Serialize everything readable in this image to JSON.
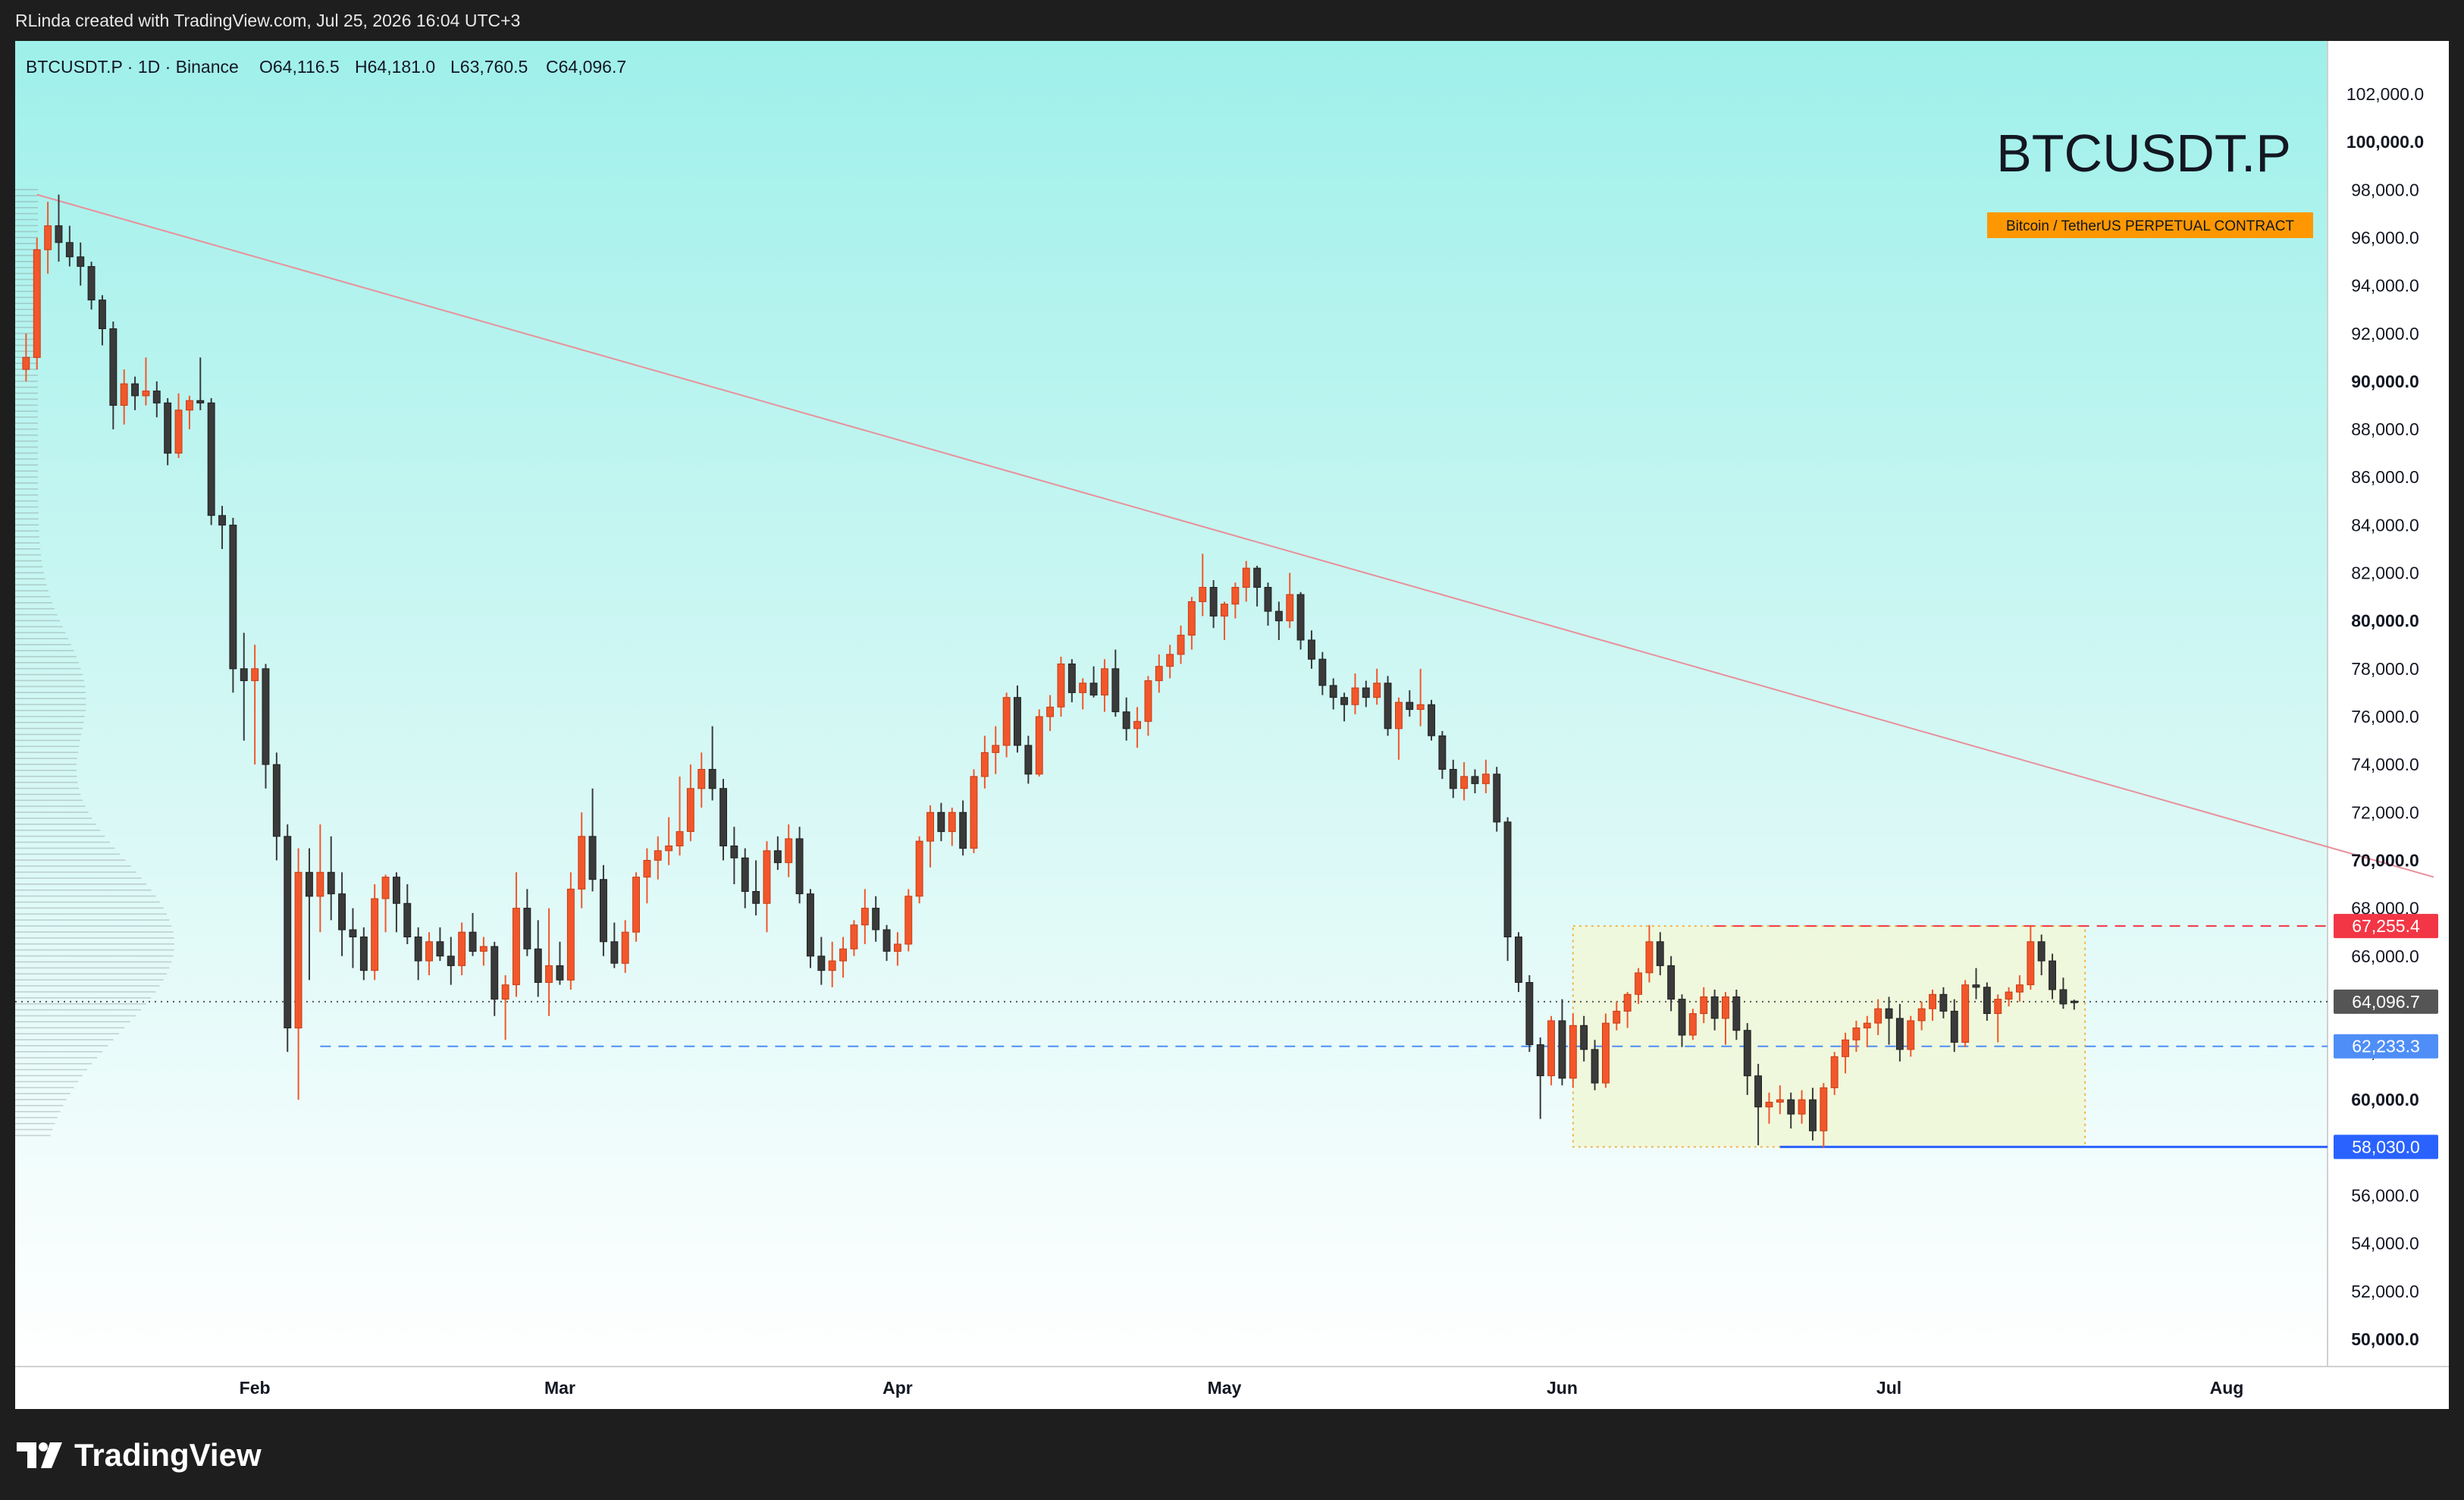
{
  "header": {
    "credit": "RLinda created with TradingView.com, Jul 25, 2026 16:04 UTC+3"
  },
  "legend": {
    "symbol_line": "BTCUSDT.P · 1D · Binance",
    "open": "O64,116.5",
    "high": "H64,181.0",
    "low": "L63,760.5",
    "close": "C64,096.7"
  },
  "watermark": {
    "symbol": "BTCUSDT.P",
    "description": "Bitcoin / TetherUS PERPETUAL CONTRACT"
  },
  "footer": {
    "brand": "TradingView"
  },
  "colors": {
    "bg_top": "#9ff0ea",
    "bg_bottom": "#ffffff",
    "bull": "#f2572b",
    "bear": "#3a3a3a",
    "trendline": "#e8909a",
    "range_box": "#f0f7d8",
    "range_border": "#f0b44a",
    "resistance": "#f23645",
    "support_mid": "#4f8ef7",
    "support_low": "#2962ff",
    "current": "#555555"
  },
  "chart_data": {
    "type": "candlestick",
    "ylim": [
      49000,
      103000
    ],
    "y_ticks": [
      102000,
      100000,
      98000,
      96000,
      94000,
      92000,
      90000,
      88000,
      86000,
      84000,
      82000,
      80000,
      78000,
      76000,
      74000,
      72000,
      70000,
      68000,
      66000,
      64000,
      62000,
      60000,
      58000,
      56000,
      54000,
      52000,
      50000
    ],
    "y_tick_labels": [
      "102,000.0",
      "100,000.0",
      "98,000.0",
      "96,000.0",
      "94,000.0",
      "92,000.0",
      "90,000.0",
      "88,000.0",
      "86,000.0",
      "84,000.0",
      "82,000.0",
      "80,000.0",
      "78,000.0",
      "76,000.0",
      "74,000.0",
      "72,000.0",
      "70,000.0",
      "68,000.0",
      "66,000.0",
      "64,000.0",
      "62,000.0",
      "60,000.0",
      "58,000.0",
      "56,000.0",
      "54,000.0",
      "52,000.0",
      "50,000.0"
    ],
    "y_tick_bold": [
      100000,
      90000,
      80000,
      70000,
      60000,
      50000
    ],
    "x_ticks": [
      {
        "date": "2026-02-01",
        "label": "Feb"
      },
      {
        "date": "2026-03-01",
        "label": "Mar"
      },
      {
        "date": "2026-04-01",
        "label": "Apr"
      },
      {
        "date": "2026-05-01",
        "label": "May"
      },
      {
        "date": "2026-06-01",
        "label": "Jun"
      },
      {
        "date": "2026-07-01",
        "label": "Jul"
      },
      {
        "date": "2026-08-01",
        "label": "Aug"
      }
    ],
    "x_range": [
      "2026-01-10",
      "2026-08-20"
    ],
    "candles_start": "2026-01-11",
    "candles": [
      [
        90500,
        92000,
        90000,
        91000
      ],
      [
        91000,
        96000,
        90500,
        95500
      ],
      [
        95500,
        97500,
        94500,
        96500
      ],
      [
        96500,
        97800,
        95000,
        95800
      ],
      [
        95800,
        96500,
        94800,
        95200
      ],
      [
        95200,
        95800,
        94000,
        94800
      ],
      [
        94800,
        95000,
        93000,
        93400
      ],
      [
        93400,
        93600,
        91500,
        92200
      ],
      [
        92200,
        92500,
        88000,
        89000
      ],
      [
        89000,
        90500,
        88200,
        89900
      ],
      [
        89900,
        90200,
        88800,
        89400
      ],
      [
        89400,
        91000,
        89000,
        89600
      ],
      [
        89600,
        90000,
        88500,
        89100
      ],
      [
        89100,
        89300,
        86500,
        87000
      ],
      [
        87000,
        89500,
        86800,
        88800
      ],
      [
        88800,
        89400,
        88000,
        89200
      ],
      [
        89200,
        91000,
        88800,
        89100
      ],
      [
        89100,
        89300,
        84000,
        84400
      ],
      [
        84400,
        84800,
        83000,
        84000
      ],
      [
        84000,
        84300,
        77000,
        78000
      ],
      [
        78000,
        79500,
        75000,
        77500
      ],
      [
        77500,
        79000,
        74000,
        78000
      ],
      [
        78000,
        78200,
        73000,
        74000
      ],
      [
        74000,
        74500,
        70000,
        71000
      ],
      [
        71000,
        71500,
        62000,
        63000
      ],
      [
        63000,
        70500,
        60000,
        69500
      ],
      [
        69500,
        70500,
        65000,
        68500
      ],
      [
        68500,
        71500,
        67000,
        69500
      ],
      [
        69500,
        71000,
        67500,
        68600
      ],
      [
        68600,
        69500,
        66000,
        67100
      ],
      [
        67100,
        68000,
        65500,
        66800
      ],
      [
        66800,
        67200,
        65000,
        65400
      ],
      [
        65400,
        69000,
        65000,
        68400
      ],
      [
        68400,
        69400,
        67000,
        69300
      ],
      [
        69300,
        69500,
        67000,
        68200
      ],
      [
        68200,
        69000,
        66500,
        66800
      ],
      [
        66800,
        67200,
        65000,
        65800
      ],
      [
        65800,
        67000,
        65200,
        66600
      ],
      [
        66600,
        67200,
        65800,
        66000
      ],
      [
        66000,
        66800,
        64800,
        65600
      ],
      [
        65600,
        67400,
        65200,
        67000
      ],
      [
        67000,
        67800,
        66000,
        66200
      ],
      [
        66200,
        66800,
        65600,
        66400
      ],
      [
        66400,
        66600,
        63500,
        64200
      ],
      [
        64200,
        65200,
        62500,
        64800
      ],
      [
        64800,
        69500,
        64300,
        68000
      ],
      [
        68000,
        68800,
        66000,
        66300
      ],
      [
        66300,
        67500,
        64300,
        64900
      ],
      [
        64900,
        68000,
        63500,
        65600
      ],
      [
        65600,
        66600,
        64800,
        65000
      ],
      [
        65000,
        69500,
        64600,
        68800
      ],
      [
        68800,
        72000,
        68000,
        71000
      ],
      [
        71000,
        73000,
        68700,
        69200
      ],
      [
        69200,
        69800,
        66000,
        66600
      ],
      [
        66600,
        67400,
        65500,
        65700
      ],
      [
        65700,
        67500,
        65300,
        67000
      ],
      [
        67000,
        69500,
        66600,
        69300
      ],
      [
        69300,
        70500,
        68200,
        70000
      ],
      [
        70000,
        71000,
        69200,
        70400
      ],
      [
        70400,
        71800,
        69800,
        70600
      ],
      [
        70600,
        73500,
        70200,
        71200
      ],
      [
        71200,
        74000,
        70800,
        73000
      ],
      [
        73000,
        74500,
        72200,
        73800
      ],
      [
        73800,
        75600,
        72500,
        73000
      ],
      [
        73000,
        73400,
        70000,
        70600
      ],
      [
        70600,
        71400,
        69000,
        70100
      ],
      [
        70100,
        70500,
        68000,
        68700
      ],
      [
        68700,
        70000,
        67700,
        68200
      ],
      [
        68200,
        70800,
        67000,
        70400
      ],
      [
        70400,
        71000,
        69600,
        69900
      ],
      [
        69900,
        71500,
        69300,
        70900
      ],
      [
        70900,
        71400,
        68200,
        68600
      ],
      [
        68600,
        68800,
        65500,
        66000
      ],
      [
        66000,
        66800,
        64800,
        65400
      ],
      [
        65400,
        66600,
        64700,
        65800
      ],
      [
        65800,
        66800,
        65100,
        66300
      ],
      [
        66300,
        67500,
        66000,
        67300
      ],
      [
        67300,
        68800,
        66500,
        68000
      ],
      [
        68000,
        68500,
        66600,
        67100
      ],
      [
        67100,
        67300,
        65800,
        66200
      ],
      [
        66200,
        67000,
        65600,
        66500
      ],
      [
        66500,
        68800,
        66200,
        68500
      ],
      [
        68500,
        71000,
        68200,
        70800
      ],
      [
        70800,
        72300,
        69700,
        72000
      ],
      [
        72000,
        72400,
        70800,
        71200
      ],
      [
        71200,
        72200,
        70600,
        72000
      ],
      [
        72000,
        72500,
        70200,
        70500
      ],
      [
        70500,
        73800,
        70300,
        73500
      ],
      [
        73500,
        75200,
        73000,
        74500
      ],
      [
        74500,
        75600,
        73600,
        74800
      ],
      [
        74800,
        77000,
        74300,
        76800
      ],
      [
        76800,
        77300,
        74500,
        74800
      ],
      [
        74800,
        75200,
        73200,
        73600
      ],
      [
        73600,
        76300,
        73500,
        76000
      ],
      [
        76000,
        76900,
        75400,
        76400
      ],
      [
        76400,
        78500,
        76000,
        78200
      ],
      [
        78200,
        78400,
        76600,
        77000
      ],
      [
        77000,
        77600,
        76300,
        77400
      ],
      [
        77400,
        78100,
        76800,
        76900
      ],
      [
        76900,
        78400,
        76200,
        78000
      ],
      [
        78000,
        78800,
        76000,
        76200
      ],
      [
        76200,
        76800,
        75000,
        75500
      ],
      [
        75500,
        76400,
        74700,
        75800
      ],
      [
        75800,
        77700,
        75200,
        77500
      ],
      [
        77500,
        78600,
        77000,
        78100
      ],
      [
        78100,
        79000,
        77600,
        78600
      ],
      [
        78600,
        79800,
        78200,
        79400
      ],
      [
        79400,
        81000,
        78800,
        80800
      ],
      [
        80800,
        82800,
        80200,
        81400
      ],
      [
        81400,
        81700,
        79700,
        80200
      ],
      [
        80200,
        80800,
        79200,
        80700
      ],
      [
        80700,
        81600,
        80100,
        81400
      ],
      [
        81400,
        82500,
        80800,
        82200
      ],
      [
        82200,
        82300,
        80600,
        81400
      ],
      [
        81400,
        81600,
        79800,
        80400
      ],
      [
        80400,
        80800,
        79200,
        80000
      ],
      [
        80000,
        82000,
        79700,
        81100
      ],
      [
        81100,
        81200,
        78800,
        79200
      ],
      [
        79200,
        79600,
        78000,
        78400
      ],
      [
        78400,
        78700,
        76900,
        77300
      ],
      [
        77300,
        77600,
        76300,
        76800
      ],
      [
        76800,
        77000,
        75800,
        76500
      ],
      [
        76500,
        77800,
        76100,
        77200
      ],
      [
        77200,
        77500,
        76400,
        76800
      ],
      [
        76800,
        78000,
        76500,
        77400
      ],
      [
        77400,
        77700,
        75200,
        75500
      ],
      [
        75500,
        76800,
        74200,
        76600
      ],
      [
        76600,
        77100,
        76000,
        76300
      ],
      [
        76300,
        78000,
        75600,
        76500
      ],
      [
        76500,
        76700,
        75000,
        75200
      ],
      [
        75200,
        75400,
        73400,
        73800
      ],
      [
        73800,
        74200,
        72600,
        73000
      ],
      [
        73000,
        74100,
        72500,
        73500
      ],
      [
        73500,
        73800,
        72800,
        73200
      ],
      [
        73200,
        74200,
        72800,
        73600
      ],
      [
        73600,
        73900,
        71200,
        71600
      ],
      [
        71600,
        71800,
        65800,
        66800
      ],
      [
        66800,
        67000,
        64500,
        64900
      ],
      [
        64900,
        65200,
        62000,
        62300
      ],
      [
        62300,
        62600,
        59200,
        61000
      ],
      [
        61000,
        63500,
        60600,
        63300
      ],
      [
        63300,
        64200,
        60600,
        60900
      ],
      [
        60900,
        63600,
        60500,
        63100
      ],
      [
        63100,
        63500,
        61600,
        62100
      ],
      [
        62100,
        62500,
        60400,
        60700
      ],
      [
        60700,
        63600,
        60500,
        63200
      ],
      [
        63200,
        64100,
        62900,
        63700
      ],
      [
        63700,
        64500,
        63000,
        64400
      ],
      [
        64400,
        65500,
        64000,
        65300
      ],
      [
        65300,
        67300,
        64900,
        66600
      ],
      [
        66600,
        67000,
        65200,
        65600
      ],
      [
        65600,
        66000,
        63700,
        64200
      ],
      [
        64200,
        64400,
        62200,
        62700
      ],
      [
        62700,
        63800,
        62500,
        63600
      ],
      [
        63600,
        64700,
        63200,
        64300
      ],
      [
        64300,
        64600,
        62900,
        63400
      ],
      [
        63400,
        64500,
        62300,
        64300
      ],
      [
        64300,
        64600,
        62500,
        62900
      ],
      [
        62900,
        63200,
        60200,
        61000
      ],
      [
        61000,
        61500,
        58100,
        59700
      ],
      [
        59700,
        60300,
        59000,
        59900
      ],
      [
        59900,
        60600,
        59400,
        60000
      ],
      [
        60000,
        60300,
        58800,
        59400
      ],
      [
        59400,
        60400,
        59000,
        60000
      ],
      [
        60000,
        60500,
        58300,
        58700
      ],
      [
        58700,
        60700,
        58000,
        60500
      ],
      [
        60500,
        62000,
        60200,
        61800
      ],
      [
        61800,
        62800,
        61100,
        62500
      ],
      [
        62500,
        63300,
        62000,
        63000
      ],
      [
        63000,
        63500,
        62200,
        63200
      ],
      [
        63200,
        64200,
        62700,
        63800
      ],
      [
        63800,
        64300,
        62300,
        63400
      ],
      [
        63400,
        64000,
        61600,
        62100
      ],
      [
        62100,
        63500,
        61800,
        63300
      ],
      [
        63300,
        64100,
        62900,
        63800
      ],
      [
        63800,
        64600,
        63300,
        64400
      ],
      [
        64400,
        64700,
        63400,
        63700
      ],
      [
        63700,
        64200,
        62000,
        62400
      ],
      [
        62400,
        65000,
        62200,
        64800
      ],
      [
        64800,
        65500,
        64200,
        64700
      ],
      [
        64700,
        64900,
        63300,
        63600
      ],
      [
        63600,
        64400,
        62400,
        64200
      ],
      [
        64200,
        64700,
        63900,
        64500
      ],
      [
        64500,
        65200,
        64100,
        64800
      ],
      [
        64800,
        67300,
        64600,
        66600
      ],
      [
        66600,
        66900,
        65200,
        65800
      ],
      [
        65800,
        66100,
        64200,
        64600
      ],
      [
        64600,
        65100,
        63800,
        64000
      ],
      [
        64116.5,
        64181.0,
        63760.5,
        64096.7
      ]
    ],
    "trendline": {
      "from": [
        "2026-01-12",
        97800
      ],
      "to": [
        "2026-08-20",
        69300
      ]
    },
    "range_box": {
      "from": "2026-06-02",
      "to": "2026-07-19",
      "low": 58030.0,
      "high": 67255.4
    },
    "levels": [
      {
        "price": 67255.4,
        "label": "67,255.4",
        "style": "dashed",
        "color": "#f23645",
        "from": "2026-06-15"
      },
      {
        "price": 64096.7,
        "label": "64,096.7",
        "style": "dotted",
        "color": "#555555",
        "from": "2026-01-10"
      },
      {
        "price": 62233.3,
        "label": "62,233.3",
        "style": "dashed",
        "color": "#4f8ef7",
        "from": "2026-02-07"
      },
      {
        "price": 58030.0,
        "label": "58,030.0",
        "style": "solid",
        "color": "#2962ff",
        "from": "2026-06-21"
      }
    ]
  }
}
